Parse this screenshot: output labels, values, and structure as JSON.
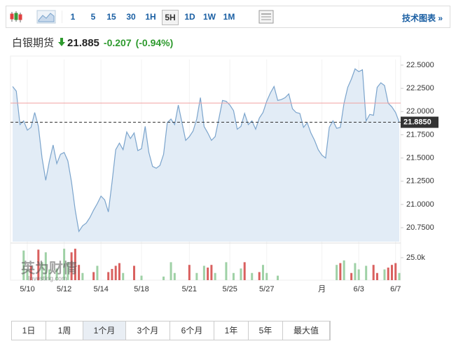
{
  "toolbar": {
    "intervals": [
      "1",
      "5",
      "15",
      "30",
      "1H",
      "5H",
      "1D",
      "1W",
      "1M"
    ],
    "selected": 5,
    "tech_link": "技术图表 »"
  },
  "header": {
    "name": "白银期货",
    "price": "21.885",
    "change": "-0.207",
    "change_pct": "(-0.94%)"
  },
  "watermark": {
    "cn": "英为财情",
    "en": "Investing.com"
  },
  "chart_data": {
    "type": "area",
    "categories": [
      null,
      null,
      null,
      null,
      "5/10",
      null,
      null,
      null,
      null,
      null,
      null,
      null,
      null,
      null,
      "5/12",
      null,
      null,
      null,
      null,
      null,
      null,
      null,
      null,
      null,
      "5/14",
      null,
      null,
      null,
      null,
      null,
      null,
      null,
      null,
      null,
      null,
      "5/18",
      null,
      null,
      null,
      null,
      null,
      null,
      null,
      null,
      null,
      null,
      null,
      null,
      "5/21",
      null,
      null,
      null,
      null,
      null,
      null,
      null,
      null,
      null,
      null,
      "5/25",
      null,
      null,
      null,
      null,
      null,
      null,
      null,
      null,
      null,
      "5/27",
      null,
      null,
      null,
      null,
      null,
      null,
      null,
      null,
      null,
      null,
      null,
      null,
      null,
      null,
      "月",
      null,
      null,
      null,
      null,
      null,
      null,
      null,
      null,
      null,
      "6/3",
      null,
      null,
      null,
      null,
      null,
      null,
      null,
      null,
      null,
      "6/7",
      null
    ],
    "values": [
      22.27,
      22.22,
      21.86,
      21.9,
      21.8,
      21.83,
      21.99,
      21.84,
      21.5,
      21.26,
      21.47,
      21.64,
      21.44,
      21.54,
      21.56,
      21.47,
      21.24,
      20.94,
      20.71,
      20.77,
      20.8,
      20.86,
      20.94,
      21.01,
      21.09,
      21.05,
      20.92,
      21.24,
      21.59,
      21.66,
      21.59,
      21.78,
      21.71,
      21.77,
      21.58,
      21.6,
      21.84,
      21.56,
      21.41,
      21.39,
      21.42,
      21.54,
      21.88,
      21.92,
      21.86,
      22.07,
      21.88,
      21.69,
      21.73,
      21.79,
      21.92,
      22.15,
      21.84,
      21.77,
      21.69,
      21.73,
      21.92,
      22.12,
      22.11,
      22.07,
      22.01,
      21.81,
      21.84,
      21.98,
      21.86,
      21.9,
      21.81,
      21.93,
      21.99,
      22.11,
      22.2,
      22.27,
      22.12,
      22.13,
      22.15,
      22.19,
      22.03,
      21.99,
      21.98,
      21.83,
      21.88,
      21.77,
      21.69,
      21.59,
      21.53,
      21.5,
      21.83,
      21.9,
      21.82,
      21.83,
      22.09,
      22.26,
      22.35,
      22.46,
      22.43,
      22.45,
      21.9,
      21.97,
      21.96,
      22.26,
      22.31,
      22.28,
      22.09,
      22.05,
      21.99,
      21.885
    ],
    "color": "#7ba4cc",
    "fill": "#e2ecf6",
    "ylim": [
      20.6,
      22.56
    ],
    "yticks": [
      {
        "value": 20.75,
        "label": "20.7500"
      },
      {
        "value": 21,
        "label": "21.0000"
      },
      {
        "value": 21.25,
        "label": "21.2500"
      },
      {
        "value": 21.5,
        "label": "21.5000"
      },
      {
        "value": 21.75,
        "label": "21.7500"
      },
      {
        "value": 22,
        "label": "22.0000"
      },
      {
        "value": 22.25,
        "label": "22.2500"
      },
      {
        "value": 22.5,
        "label": "22.5000"
      }
    ],
    "current": {
      "value": 21.885,
      "label": "21.8850"
    },
    "previous_close": 22.092,
    "volume_up": [
      null,
      null,
      null,
      33000,
      12000,
      null,
      null,
      null,
      20000,
      31000,
      12000,
      null,
      13000,
      null,
      35000,
      20000,
      null,
      null,
      null,
      8000,
      null,
      null,
      null,
      16000,
      null,
      null,
      null,
      null,
      null,
      null,
      8000,
      null,
      null,
      null,
      null,
      5000,
      null,
      null,
      null,
      null,
      null,
      4000,
      null,
      20000,
      8000,
      null,
      null,
      null,
      null,
      null,
      8000,
      null,
      16000,
      null,
      null,
      8000,
      null,
      null,
      20000,
      null,
      8000,
      null,
      13000,
      null,
      null,
      8000,
      null,
      null,
      17000,
      8000,
      null,
      null,
      5000,
      null,
      null,
      null,
      null,
      null,
      null,
      null,
      null,
      null,
      null,
      null,
      null,
      null,
      null,
      null,
      17000,
      null,
      22000,
      null,
      null,
      19000,
      12000,
      null,
      16000,
      null,
      null,
      null,
      null,
      12000,
      null,
      null,
      null,
      8000
    ],
    "volume_down": [
      null,
      null,
      null,
      null,
      null,
      16000,
      null,
      34000,
      null,
      null,
      null,
      null,
      null,
      null,
      null,
      null,
      31000,
      35000,
      17000,
      null,
      null,
      null,
      9000,
      null,
      null,
      null,
      9000,
      12500,
      16000,
      19000,
      null,
      null,
      null,
      16000,
      null,
      null,
      null,
      null,
      null,
      null,
      null,
      null,
      null,
      null,
      null,
      null,
      null,
      null,
      17000,
      null,
      null,
      null,
      null,
      14000,
      17000,
      null,
      null,
      null,
      null,
      null,
      null,
      null,
      null,
      20000,
      null,
      null,
      null,
      9000,
      null,
      null,
      null,
      null,
      null,
      null,
      null,
      null,
      null,
      null,
      null,
      null,
      null,
      null,
      null,
      null,
      null,
      null,
      null,
      null,
      null,
      19000,
      null,
      null,
      8000,
      null,
      null,
      null,
      null,
      null,
      17000,
      8000,
      null,
      null,
      14000,
      17000,
      19000,
      null
    ],
    "volume_up_color": "#9fd1a6",
    "volume_down_color": "#d9605f",
    "vlim": [
      0,
      39000
    ],
    "vticks": [
      {
        "value": 25000,
        "label": "25.0k"
      }
    ]
  },
  "range_tabs": {
    "labels": [
      "1日",
      "1周",
      "1个月",
      "3个月",
      "6个月",
      "1年",
      "5年",
      "最大值"
    ],
    "selected": 2
  }
}
